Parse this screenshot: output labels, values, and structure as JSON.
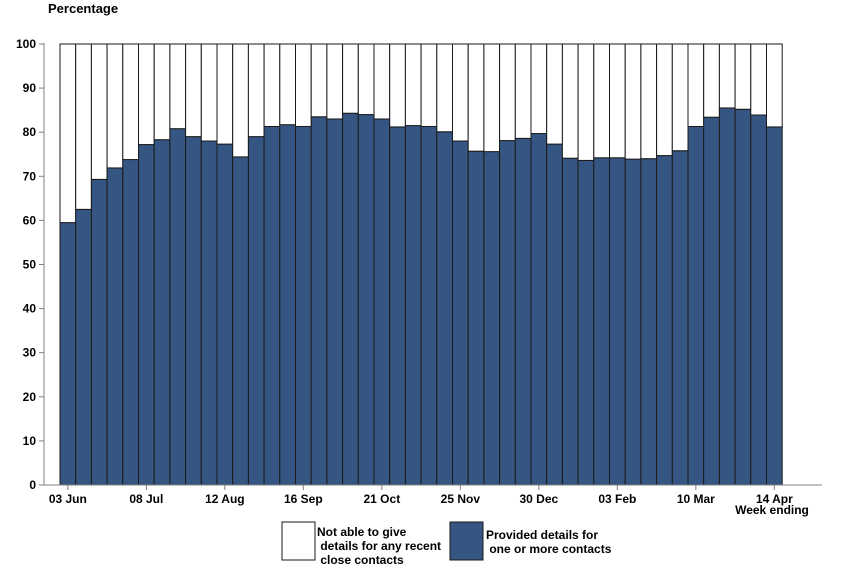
{
  "chart_data": {
    "type": "bar",
    "stacked": true,
    "ylabel": "Percentage",
    "xlabel": "Week ending",
    "ylim": [
      0,
      100
    ],
    "yticks": [
      0,
      10,
      20,
      30,
      40,
      50,
      60,
      70,
      80,
      90,
      100
    ],
    "x_tick_labels": [
      "03 Jun",
      "08 Jul",
      "12 Aug",
      "16 Sep",
      "21 Oct",
      "25 Nov",
      "30 Dec",
      "03 Feb",
      "10 Mar",
      "14 Apr"
    ],
    "x_tick_every": 5,
    "grid": false,
    "legend_position": "bottom",
    "series": [
      {
        "name": "Provided details for one or more contacts",
        "legend_lines": [
          "Provided details for",
          " one or more contacts"
        ],
        "color": "#355682",
        "values": [
          59.5,
          62.5,
          69.3,
          71.9,
          73.8,
          77.2,
          78.3,
          80.8,
          79.0,
          78.0,
          77.3,
          74.4,
          79.0,
          81.3,
          81.7,
          81.3,
          83.5,
          83.0,
          84.3,
          84.0,
          83.0,
          81.2,
          81.5,
          81.3,
          80.1,
          78.0,
          75.7,
          75.6,
          78.1,
          78.6,
          79.7,
          77.3,
          74.1,
          73.6,
          74.2,
          74.2,
          73.9,
          74.0,
          74.7,
          75.8,
          81.3,
          83.4,
          85.5,
          85.2,
          83.9,
          81.2
        ]
      },
      {
        "name": "Not able to give details for any recent close contacts",
        "legend_lines": [
          "Not able to give",
          " details for any recent",
          " close contacts"
        ],
        "color": "#ffffff",
        "values": [
          40.5,
          37.5,
          30.7,
          28.1,
          26.2,
          22.8,
          21.7,
          19.2,
          21.0,
          22.0,
          22.7,
          25.6,
          21.0,
          18.7,
          18.3,
          18.7,
          16.5,
          17.0,
          15.7,
          16.0,
          17.0,
          18.8,
          18.5,
          18.7,
          19.9,
          22.0,
          24.3,
          24.4,
          21.9,
          21.4,
          20.3,
          22.7,
          25.9,
          26.4,
          25.8,
          25.8,
          26.1,
          26.0,
          25.3,
          24.2,
          18.7,
          16.6,
          14.5,
          14.8,
          16.1,
          18.8
        ]
      }
    ]
  }
}
